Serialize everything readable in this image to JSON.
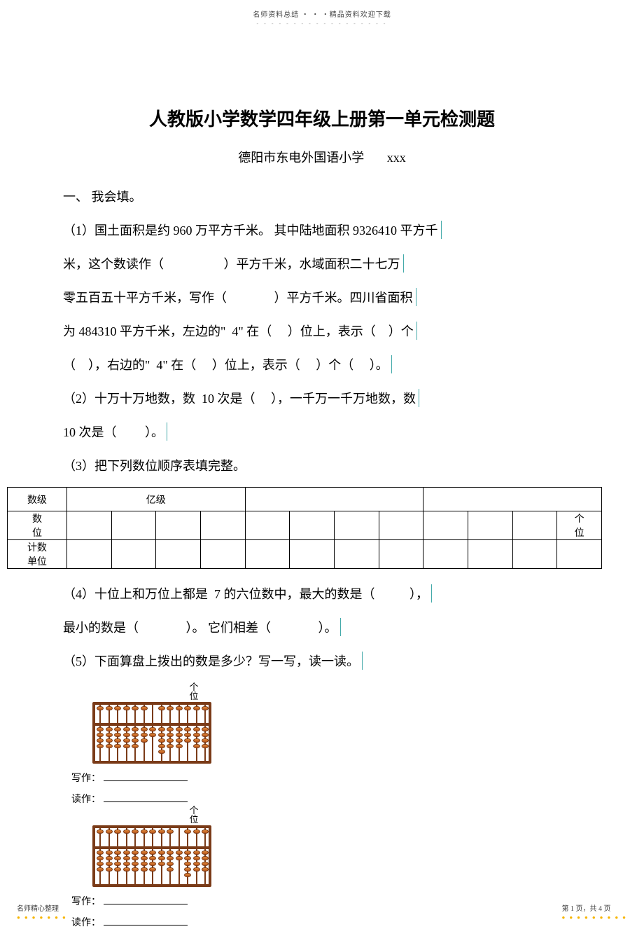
{
  "header": {
    "top": "名师资料总结 ・ ・ ・精品资料欢迎下载"
  },
  "doc": {
    "title": "人教版小学数学四年级上册第一单元检测题",
    "school": "德阳市东电外国语小学",
    "author": "xxx",
    "section_head": "一、   我会填。"
  },
  "q1": {
    "l1a": "（1）国土面积是约",
    "l1b": "960",
    "l1c": "万平方千米。 其中陆地面积",
    "l1d": "9326410",
    "l1e": "平方千",
    "l2a": "米，这个数读作（",
    "l2b": "）平方千米，水域面积二十七万",
    "l3a": "零五百五十平方千米，写作（",
    "l3b": "）平方千米。四川省面积",
    "l4a": "为",
    "l4b": "484310",
    "l4c": "平方千米，左边的\"",
    "l4d": "4\"",
    "l4e": "在（",
    "l4f": "）位上，表示（",
    "l4g": "）个",
    "l5a": "（",
    "l5b": "），右边的\"",
    "l5c": "4\"",
    "l5d": "在（",
    "l5e": "）位上，表示（",
    "l5f": "）个（",
    "l5g": "）。"
  },
  "q2": {
    "l1a": "（2）十万十万地数，数",
    "l1b": "10",
    "l1c": "次是（",
    "l1d": "），一千万一千万地数，数",
    "l2a": "10",
    "l2b": "次是（",
    "l2c": "）。"
  },
  "q3": {
    "text": "（3）把下列数位顺序表填完整。",
    "rows": {
      "r1c1": "数级",
      "r1c2": "亿级",
      "r2c1_l1": "数",
      "r2c1_l2": "位",
      "r2last_l1": "个",
      "r2last_l2": "位",
      "r3c1_l1": "计数",
      "r3c1_l2": "单位"
    }
  },
  "q4": {
    "l1a": "（4）十位上和万位上都是",
    "l1b": "7",
    "l1c": "的六位数中，最大的数是（",
    "l1d": "），",
    "l2a": "最小的数是（",
    "l2b": "）。 它们相差（",
    "l2c": "）。"
  },
  "q5": {
    "text": "（5）下面算盘上拨出的数是多少？写一写，读一读。",
    "marker_l1": "个",
    "marker_l2": "位",
    "write": "写作：",
    "read": "读作："
  },
  "abacus": {
    "rods": 13,
    "frame_color": "#7a3b18",
    "bead_color": "#c9651f",
    "left": {
      "upper": [
        1,
        1,
        1,
        1,
        1,
        1,
        0,
        1,
        1,
        1,
        1,
        1,
        1
      ],
      "lower": [
        4,
        4,
        4,
        4,
        4,
        3,
        2,
        5,
        4,
        4,
        3,
        4,
        4
      ]
    },
    "right": {
      "upper": [
        1,
        1,
        1,
        1,
        1,
        1,
        1,
        1,
        1,
        0,
        1,
        1,
        1
      ],
      "lower": [
        4,
        4,
        4,
        4,
        4,
        4,
        4,
        3,
        4,
        2,
        5,
        4,
        4
      ]
    }
  },
  "footer": {
    "left": "名师精心整理",
    "right": "第 1 页，共 4 页"
  },
  "colors": {
    "text": "#000000",
    "accent_teal": "#22bbaa",
    "dots_gold": "#f7b500",
    "header_grey": "#444444"
  }
}
